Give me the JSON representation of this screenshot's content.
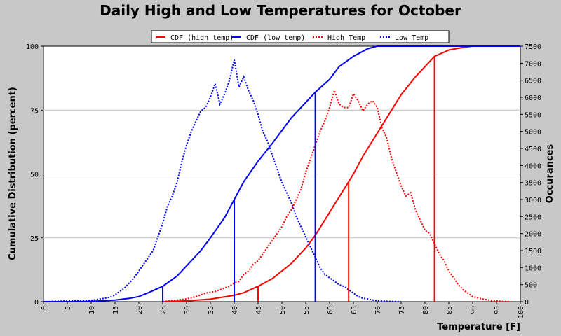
{
  "chart_data": {
    "type": "line",
    "title": "Daily High and Low Temperatures for October",
    "xlabel": "Temperature [F]",
    "ylabel_left": "Cumulative Distribution (percent)",
    "ylabel_right": "Occurances",
    "xlim": [
      0,
      100
    ],
    "ylim_left": [
      0,
      100
    ],
    "ylim_right": [
      0,
      7500
    ],
    "x_ticks": [
      0,
      5,
      10,
      15,
      20,
      25,
      30,
      35,
      40,
      45,
      50,
      55,
      60,
      65,
      70,
      75,
      80,
      85,
      90,
      95,
      100
    ],
    "y_left_ticks": [
      0,
      25,
      50,
      75,
      100
    ],
    "y_right_ticks": [
      0,
      500,
      1000,
      1500,
      2000,
      2500,
      3000,
      3500,
      4000,
      4500,
      5000,
      5500,
      6000,
      6500,
      7000,
      7500
    ],
    "grid": "horizontal",
    "legend_position": "top",
    "colors": {
      "high": "#ff0000",
      "low": "#0000ff"
    },
    "series": [
      {
        "name": "CDF (high temp)",
        "axis": "left",
        "style": "solid",
        "color": "#ff0000",
        "x": [
          25,
          30,
          35,
          40,
          42,
          45,
          48,
          50,
          52,
          55,
          57,
          60,
          62,
          65,
          67,
          70,
          72,
          75,
          78,
          80,
          82,
          85,
          88,
          90,
          95,
          100
        ],
        "y": [
          0,
          0.3,
          1,
          2.5,
          3.5,
          6,
          9,
          12,
          15,
          21,
          26,
          35,
          41,
          50,
          57,
          66,
          72,
          81,
          88,
          92,
          96,
          98.5,
          99.5,
          100,
          100,
          100
        ]
      },
      {
        "name": "CDF (low temp)",
        "axis": "left",
        "style": "solid",
        "color": "#0000ff",
        "x": [
          0,
          5,
          10,
          15,
          18,
          20,
          22,
          25,
          28,
          30,
          33,
          35,
          38,
          40,
          42,
          45,
          48,
          50,
          52,
          55,
          57,
          60,
          62,
          65,
          68,
          70,
          75,
          80,
          90,
          100
        ],
        "y": [
          0,
          0,
          0.1,
          0.6,
          1.3,
          2,
          3.5,
          6,
          10,
          14,
          20,
          25,
          33,
          40,
          47,
          55,
          62,
          67,
          72,
          78,
          82,
          87,
          92,
          96,
          99,
          100,
          100,
          100,
          100,
          100
        ]
      },
      {
        "name": "High Temp",
        "axis": "right",
        "style": "dotted",
        "color": "#ff0000",
        "x": [
          25,
          28,
          30,
          32,
          34,
          36,
          37,
          38,
          39,
          40,
          41,
          42,
          43,
          44,
          45,
          46,
          47,
          48,
          49,
          50,
          51,
          52,
          53,
          54,
          55,
          56,
          57,
          58,
          59,
          60,
          61,
          62,
          63,
          64,
          65,
          66,
          67,
          68,
          69,
          70,
          71,
          72,
          73,
          74,
          75,
          76,
          77,
          78,
          79,
          80,
          81,
          82,
          83,
          84,
          85,
          86,
          87,
          88,
          90,
          92,
          94,
          96,
          98
        ],
        "y": [
          0,
          50,
          80,
          150,
          250,
          300,
          350,
          400,
          450,
          550,
          600,
          800,
          900,
          1100,
          1200,
          1400,
          1600,
          1800,
          2000,
          2200,
          2500,
          2700,
          3000,
          3300,
          3800,
          4200,
          4600,
          5000,
          5300,
          5700,
          6200,
          5800,
          5700,
          5700,
          6100,
          5900,
          5600,
          5800,
          5900,
          5700,
          5100,
          4800,
          4200,
          3800,
          3400,
          3100,
          3200,
          2700,
          2400,
          2100,
          2000,
          1700,
          1400,
          1200,
          900,
          700,
          500,
          350,
          150,
          80,
          30,
          10,
          0
        ],
        "vlines": [
          45,
          64,
          82
        ]
      },
      {
        "name": "Low Temp",
        "axis": "right",
        "style": "dotted",
        "color": "#0000ff",
        "x": [
          0,
          8,
          10,
          12,
          14,
          15,
          16,
          17,
          18,
          19,
          20,
          21,
          22,
          23,
          24,
          25,
          26,
          27,
          28,
          29,
          30,
          31,
          32,
          33,
          34,
          35,
          36,
          37,
          38,
          39,
          40,
          41,
          42,
          43,
          44,
          45,
          46,
          47,
          48,
          49,
          50,
          51,
          52,
          53,
          54,
          55,
          56,
          57,
          58,
          59,
          60,
          61,
          62,
          63,
          64,
          65,
          66,
          67,
          68,
          69,
          70,
          72,
          75
        ],
        "y": [
          0,
          30,
          40,
          80,
          130,
          200,
          300,
          400,
          550,
          700,
          900,
          1100,
          1300,
          1500,
          1900,
          2300,
          2800,
          3100,
          3500,
          4100,
          4600,
          5000,
          5300,
          5600,
          5700,
          6000,
          6400,
          5800,
          6100,
          6500,
          7100,
          6300,
          6600,
          6200,
          5900,
          5500,
          5000,
          4700,
          4300,
          3900,
          3500,
          3200,
          2900,
          2500,
          2200,
          1900,
          1600,
          1300,
          1000,
          800,
          700,
          600,
          500,
          450,
          350,
          250,
          150,
          100,
          80,
          50,
          30,
          10,
          0
        ],
        "vlines": [
          25,
          40,
          57
        ]
      }
    ]
  }
}
